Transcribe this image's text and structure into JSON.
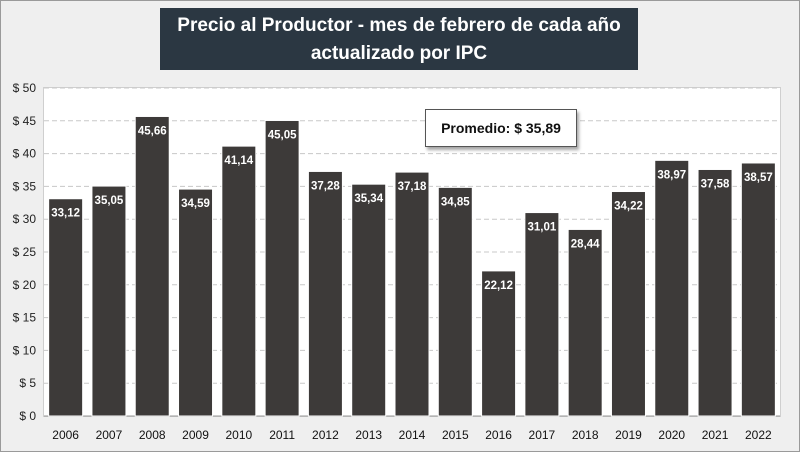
{
  "chart_data": {
    "type": "bar",
    "title": "Precio al Productor - mes de febrero de cada año",
    "subtitle": "actualizado por IPC",
    "categories": [
      "2006",
      "2007",
      "2008",
      "2009",
      "2010",
      "2011",
      "2012",
      "2013",
      "2014",
      "2015",
      "2016",
      "2017",
      "2018",
      "2019",
      "2020",
      "2021",
      "2022"
    ],
    "values": [
      33.12,
      35.05,
      45.66,
      34.59,
      41.14,
      45.05,
      37.28,
      35.34,
      37.18,
      34.85,
      22.12,
      31.01,
      28.44,
      34.22,
      38.97,
      37.58,
      38.57
    ],
    "value_labels": [
      "33,12",
      "35,05",
      "45,66",
      "34,59",
      "41,14",
      "45,05",
      "37,28",
      "35,34",
      "37,18",
      "34,85",
      "22,12",
      "31,01",
      "28,44",
      "34,22",
      "38,97",
      "37,58",
      "38,57"
    ],
    "ylim": [
      0,
      50
    ],
    "yticks": [
      0,
      5,
      10,
      15,
      20,
      25,
      30,
      35,
      40,
      45,
      50
    ],
    "ytick_labels": [
      "$ 0",
      "$ 5",
      "$ 10",
      "$ 15",
      "$ 20",
      "$ 25",
      "$ 30",
      "$ 35",
      "$ 40",
      "$ 45",
      "$ 50"
    ],
    "grid": true,
    "annotation": "Promedio: $ 35,89",
    "bar_color": "#3d3a39",
    "xlabel": "",
    "ylabel": ""
  }
}
